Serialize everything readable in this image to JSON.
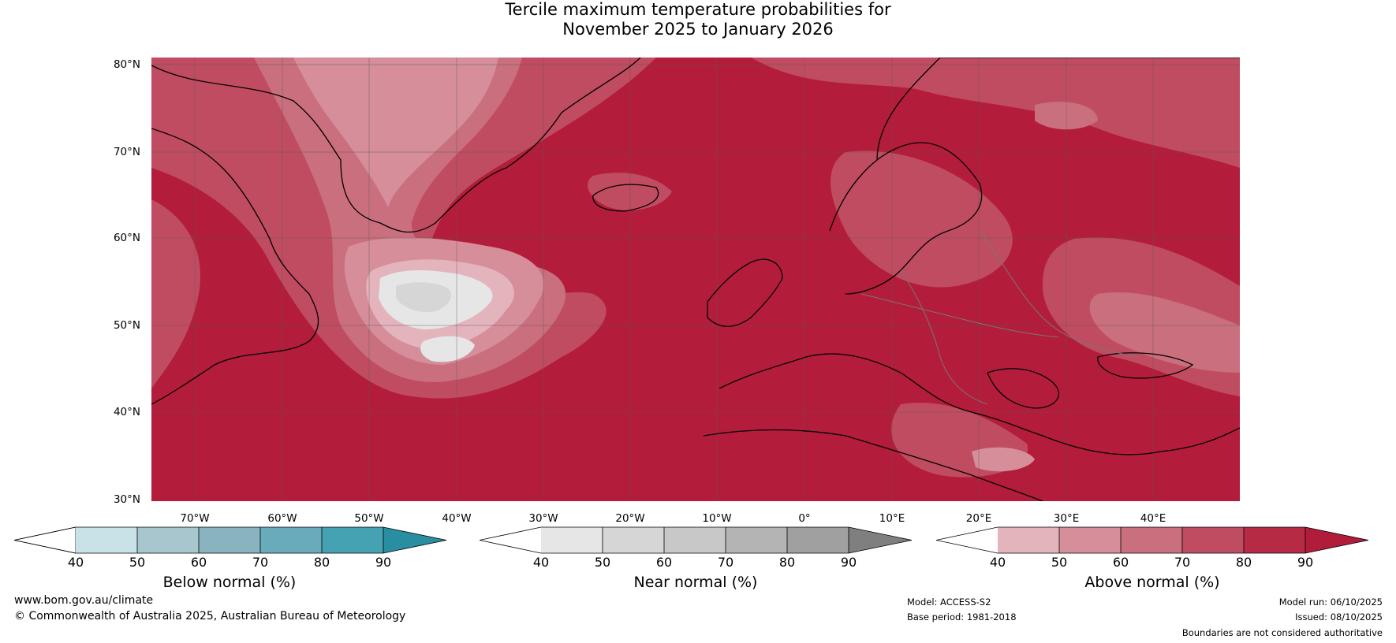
{
  "title_line1": "Tercile maximum temperature probabilities for",
  "title_line2": "November 2025 to January 2026",
  "lat_labels": [
    "80°N",
    "70°N",
    "60°N",
    "50°N",
    "40°N",
    "30°N"
  ],
  "lon_labels": [
    "70°W",
    "60°W",
    "50°W",
    "40°W",
    "30°W",
    "20°W",
    "10°W",
    "0°",
    "10°E",
    "20°E",
    "30°E",
    "40°E"
  ],
  "colorbars": [
    {
      "label": "Below normal (%)",
      "ticks": [
        "40",
        "50",
        "60",
        "70",
        "80",
        "90"
      ],
      "colors": [
        "#ffffff",
        "#c9e2e8",
        "#a8c6cd",
        "#88b3bf",
        "#69abbb",
        "#45a2b3",
        "#2a8ea3"
      ]
    },
    {
      "label": "Near normal (%)",
      "ticks": [
        "40",
        "50",
        "60",
        "70",
        "80",
        "90"
      ],
      "colors": [
        "#ffffff",
        "#e6e6e6",
        "#d6d6d6",
        "#c8c8c8",
        "#b4b4b4",
        "#a0a0a0",
        "#7f7f7f"
      ]
    },
    {
      "label": "Above normal (%)",
      "ticks": [
        "40",
        "50",
        "60",
        "70",
        "80",
        "90"
      ],
      "colors": [
        "#ffffff",
        "#e4b4bd",
        "#d58e9a",
        "#c96f7e",
        "#c04c61",
        "#b72a44",
        "#b01c3a"
      ]
    }
  ],
  "footer": {
    "website": "www.bom.gov.au/climate",
    "copyright": "© Commonwealth of Australia 2025, Australian Bureau of Meteorology",
    "model": "Model: ACCESS-S2",
    "base_period": "Base period: 1981-2018",
    "model_run": "Model run: 06/10/2025",
    "issued": "Issued: 08/10/2025",
    "disclaimer": "Boundaries are not considered authoritative"
  }
}
